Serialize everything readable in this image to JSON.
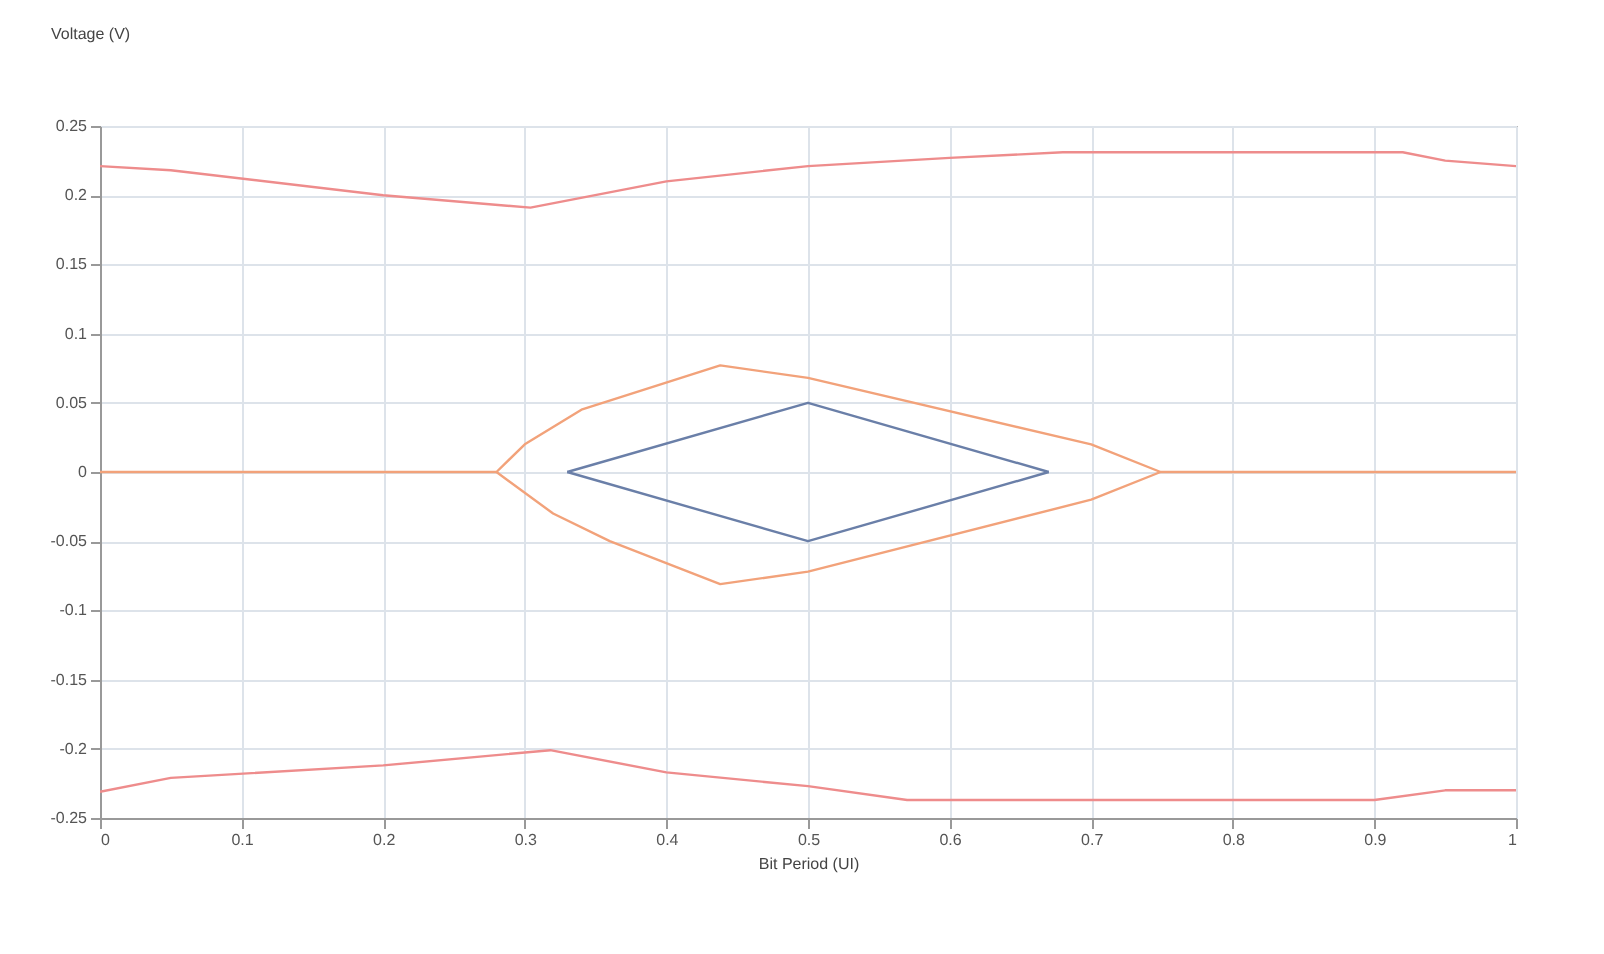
{
  "chart_data": {
    "type": "line",
    "xlabel": "Bit Period (UI)",
    "ylabel": "Voltage (V)",
    "xlim": [
      0,
      1
    ],
    "xticks": [
      0,
      0.1,
      0.2,
      0.3,
      0.4,
      0.5,
      0.6,
      0.7,
      0.8,
      0.9,
      1
    ],
    "ylim": [
      -0.25,
      0.25
    ],
    "yticks": [
      -0.25,
      -0.2,
      -0.15,
      -0.1,
      -0.05,
      0,
      0.05,
      0.1,
      0.15,
      0.2,
      0.25
    ],
    "grid": true,
    "legend": false,
    "marker": "none",
    "line_style": "solid",
    "series": [
      {
        "color": "#ee8c8c",
        "x": [
          0,
          0.05,
          0.2,
          0.304,
          0.4,
          0.5,
          0.6,
          0.68,
          0.8,
          0.92,
          0.95,
          1
        ],
        "values": [
          0.221,
          0.218,
          0.2,
          0.191,
          0.21,
          0.221,
          0.227,
          0.231,
          0.231,
          0.231,
          0.225,
          0.221
        ]
      },
      {
        "color": "#ee8c8c",
        "x": [
          0,
          0.05,
          0.2,
          0.318,
          0.4,
          0.5,
          0.57,
          0.7,
          0.9,
          0.95,
          1
        ],
        "values": [
          -0.231,
          -0.221,
          -0.212,
          -0.201,
          -0.217,
          -0.227,
          -0.237,
          -0.237,
          -0.237,
          -0.23,
          -0.23
        ]
      },
      {
        "color": "#f2a27a",
        "x": [
          0,
          0.28,
          0.3,
          0.34,
          0.438,
          0.5,
          0.7,
          0.749,
          1
        ],
        "values": [
          0,
          0,
          0.02,
          0.045,
          0.077,
          0.068,
          0.02,
          0,
          0
        ]
      },
      {
        "color": "#f2a27a",
        "x": [
          0.28,
          0.32,
          0.36,
          0.438,
          0.5,
          0.7,
          0.749
        ],
        "values": [
          0,
          -0.03,
          -0.05,
          -0.081,
          -0.072,
          -0.02,
          0
        ]
      },
      {
        "color": "#6a7fa8",
        "x": [
          0.33,
          0.5,
          0.67
        ],
        "values": [
          0,
          0.05,
          0
        ]
      },
      {
        "color": "#6a7fa8",
        "x": [
          0.33,
          0.5,
          0.67
        ],
        "values": [
          0,
          -0.05,
          0
        ]
      }
    ]
  }
}
